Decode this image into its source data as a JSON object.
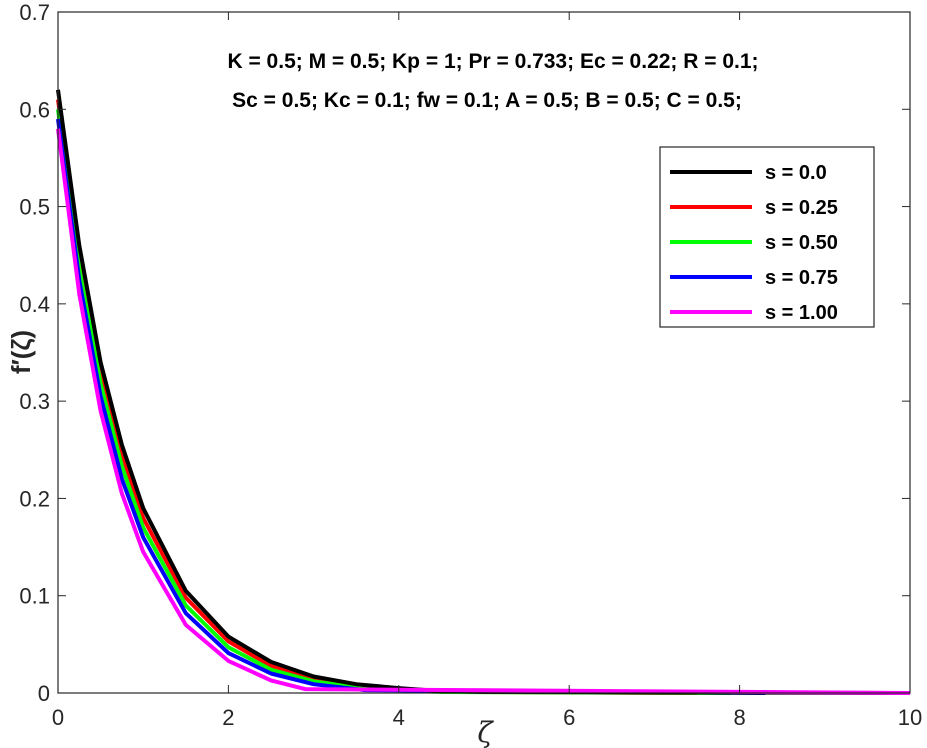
{
  "chart_data": {
    "type": "line",
    "xlabel": "ζ",
    "ylabel": "f′(ζ)",
    "xlim": [
      0,
      10
    ],
    "ylim": [
      0,
      0.7
    ],
    "xticks": [
      "0",
      "2",
      "4",
      "6",
      "8",
      "10"
    ],
    "yticks": [
      "0",
      "0.1",
      "0.2",
      "0.3",
      "0.4",
      "0.5",
      "0.6",
      "0.7"
    ],
    "grid": false,
    "legend_position": "top-right",
    "annotations": [
      "K = 0.5; M = 0.5; Kp = 1; Pr = 0.733; Ec = 0.22; R = 0.1;",
      "Sc = 0.5; Kc = 0.1; fw = 0.1; A = 0.5; B = 0.5; C = 0.5;"
    ],
    "series": [
      {
        "name": "s = 0.0",
        "color": "#000000",
        "x_end": 10,
        "x": [
          0,
          0.25,
          0.5,
          0.75,
          1.0,
          1.5,
          2.0,
          2.5,
          3.0,
          3.5,
          4.0,
          4.5,
          5.0,
          10
        ],
        "y": [
          0.62,
          0.46,
          0.34,
          0.255,
          0.19,
          0.105,
          0.058,
          0.032,
          0.017,
          0.009,
          0.005,
          0.002,
          0.001,
          0
        ]
      },
      {
        "name": "s = 0.25",
        "color": "#ff0000",
        "x_end": 7.5,
        "x": [
          0,
          0.25,
          0.5,
          0.75,
          1.0,
          1.5,
          2.0,
          2.5,
          3.0,
          3.5,
          4.0,
          4.5,
          5.0,
          7.5
        ],
        "y": [
          0.61,
          0.448,
          0.33,
          0.245,
          0.18,
          0.098,
          0.053,
          0.028,
          0.015,
          0.008,
          0.004,
          0.002,
          0.001,
          0
        ]
      },
      {
        "name": "s = 0.50",
        "color": "#00ff00",
        "x_end": 7.9,
        "x": [
          0,
          0.25,
          0.5,
          0.75,
          1.0,
          1.5,
          2.0,
          2.5,
          3.0,
          3.5,
          4.0,
          4.5,
          7.9
        ],
        "y": [
          0.6,
          0.436,
          0.318,
          0.233,
          0.17,
          0.09,
          0.047,
          0.024,
          0.012,
          0.006,
          0.003,
          0.001,
          0
        ]
      },
      {
        "name": "s = 0.75",
        "color": "#0000ff",
        "x_end": 8.3,
        "x": [
          0,
          0.25,
          0.5,
          0.75,
          1.0,
          1.5,
          2.0,
          2.5,
          3.0,
          3.6,
          8.3
        ],
        "y": [
          0.59,
          0.424,
          0.305,
          0.22,
          0.16,
          0.082,
          0.041,
          0.02,
          0.009,
          0.003,
          0
        ]
      },
      {
        "name": "s = 1.00",
        "color": "#ff00ff",
        "x_end": 10,
        "x": [
          0,
          0.25,
          0.5,
          0.75,
          1.0,
          1.5,
          2.0,
          2.5,
          2.9,
          10
        ],
        "y": [
          0.58,
          0.41,
          0.29,
          0.205,
          0.145,
          0.07,
          0.033,
          0.013,
          0.004,
          0
        ]
      }
    ]
  }
}
